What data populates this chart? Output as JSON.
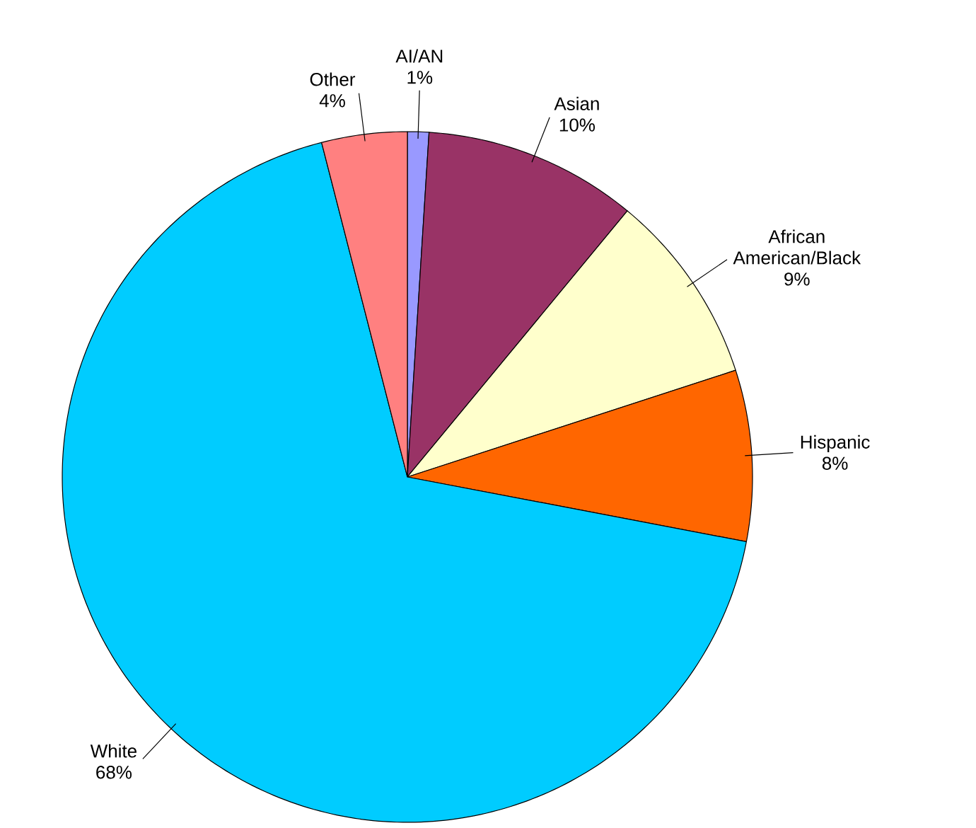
{
  "chart_data": {
    "type": "pie",
    "categories": [
      "AI/AN",
      "Asian",
      "African American/Black",
      "Hispanic",
      "White",
      "Other"
    ],
    "values": [
      1,
      10,
      9,
      8,
      68,
      4
    ],
    "colors": [
      "#9999ff",
      "#993366",
      "#ffffcc",
      "#ff6600",
      "#00ccff",
      "#ff8080"
    ],
    "value_labels": [
      "1%",
      "10%",
      "9%",
      "8%",
      "68%",
      "4%"
    ]
  }
}
